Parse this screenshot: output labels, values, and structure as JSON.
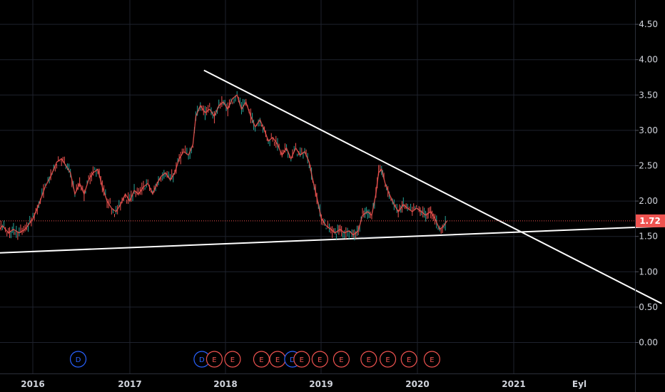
{
  "chart_data": {
    "type": "candlestick",
    "title": "",
    "xlabel": "",
    "ylabel": "",
    "x_ticks": [
      "2016",
      "2017",
      "2018",
      "2019",
      "2020",
      "2021",
      "Eyl"
    ],
    "y_ticks": [
      "0.00",
      "0.50",
      "1.00",
      "1.50",
      "2.00",
      "2.50",
      "3.00",
      "3.50",
      "4.00",
      "4.50"
    ],
    "ylim": [
      -0.45,
      4.85
    ],
    "xlim": [
      "2015-06",
      "2021-12"
    ],
    "grid": true,
    "last_price": "1.72",
    "last_price_value": 1.72,
    "colors": {
      "up": "#26a69a",
      "down": "#ef5350",
      "dividend": "#2962ff",
      "earnings": "#ef5350",
      "trendline": "#ffffff",
      "price_line": "#ef5350",
      "background": "#000000",
      "grid": "#1e222d"
    },
    "price_path": [
      {
        "x": "2015-06-01",
        "y": 1.35
      },
      {
        "x": "2015-06-20",
        "y": 1.45
      },
      {
        "x": "2015-07-10",
        "y": 1.55
      },
      {
        "x": "2015-07-25",
        "y": 1.85
      },
      {
        "x": "2015-08-15",
        "y": 1.7
      },
      {
        "x": "2015-09-05",
        "y": 1.55
      },
      {
        "x": "2015-09-25",
        "y": 1.65
      },
      {
        "x": "2015-10-15",
        "y": 1.55
      },
      {
        "x": "2015-11-01",
        "y": 1.6
      },
      {
        "x": "2015-11-20",
        "y": 1.55
      },
      {
        "x": "2015-12-10",
        "y": 1.6
      },
      {
        "x": "2016-01-05",
        "y": 1.75
      },
      {
        "x": "2016-01-25",
        "y": 1.95
      },
      {
        "x": "2016-02-15",
        "y": 2.2
      },
      {
        "x": "2016-03-05",
        "y": 2.35
      },
      {
        "x": "2016-03-25",
        "y": 2.55
      },
      {
        "x": "2016-04-10",
        "y": 2.6
      },
      {
        "x": "2016-04-25",
        "y": 2.5
      },
      {
        "x": "2016-05-10",
        "y": 2.4
      },
      {
        "x": "2016-05-25",
        "y": 2.1
      },
      {
        "x": "2016-06-10",
        "y": 2.25
      },
      {
        "x": "2016-06-25",
        "y": 2.1
      },
      {
        "x": "2016-07-10",
        "y": 2.3
      },
      {
        "x": "2016-07-25",
        "y": 2.4
      },
      {
        "x": "2016-08-10",
        "y": 2.45
      },
      {
        "x": "2016-08-25",
        "y": 2.2
      },
      {
        "x": "2016-09-10",
        "y": 2.0
      },
      {
        "x": "2016-09-25",
        "y": 1.9
      },
      {
        "x": "2016-10-10",
        "y": 1.85
      },
      {
        "x": "2016-10-25",
        "y": 1.95
      },
      {
        "x": "2016-11-10",
        "y": 2.1
      },
      {
        "x": "2016-11-25",
        "y": 2.0
      },
      {
        "x": "2016-12-10",
        "y": 2.15
      },
      {
        "x": "2016-12-25",
        "y": 2.1
      },
      {
        "x": "2017-01-10",
        "y": 2.2
      },
      {
        "x": "2017-01-25",
        "y": 2.25
      },
      {
        "x": "2017-02-10",
        "y": 2.1
      },
      {
        "x": "2017-02-25",
        "y": 2.25
      },
      {
        "x": "2017-03-10",
        "y": 2.35
      },
      {
        "x": "2017-03-25",
        "y": 2.4
      },
      {
        "x": "2017-04-10",
        "y": 2.3
      },
      {
        "x": "2017-04-25",
        "y": 2.4
      },
      {
        "x": "2017-05-10",
        "y": 2.6
      },
      {
        "x": "2017-05-25",
        "y": 2.7
      },
      {
        "x": "2017-06-10",
        "y": 2.65
      },
      {
        "x": "2017-06-25",
        "y": 2.8
      },
      {
        "x": "2017-07-05",
        "y": 3.2
      },
      {
        "x": "2017-07-20",
        "y": 3.35
      },
      {
        "x": "2017-08-05",
        "y": 3.25
      },
      {
        "x": "2017-08-20",
        "y": 3.3
      },
      {
        "x": "2017-09-05",
        "y": 3.2
      },
      {
        "x": "2017-09-20",
        "y": 3.35
      },
      {
        "x": "2017-10-05",
        "y": 3.4
      },
      {
        "x": "2017-10-20",
        "y": 3.3
      },
      {
        "x": "2017-11-05",
        "y": 3.45
      },
      {
        "x": "2017-11-20",
        "y": 3.5
      },
      {
        "x": "2017-12-05",
        "y": 3.3
      },
      {
        "x": "2017-12-20",
        "y": 3.4
      },
      {
        "x": "2018-01-05",
        "y": 3.2
      },
      {
        "x": "2018-01-20",
        "y": 3.05
      },
      {
        "x": "2018-02-05",
        "y": 3.15
      },
      {
        "x": "2018-02-20",
        "y": 3.0
      },
      {
        "x": "2018-03-05",
        "y": 2.85
      },
      {
        "x": "2018-03-20",
        "y": 2.9
      },
      {
        "x": "2018-04-05",
        "y": 2.8
      },
      {
        "x": "2018-04-20",
        "y": 2.65
      },
      {
        "x": "2018-05-05",
        "y": 2.75
      },
      {
        "x": "2018-05-20",
        "y": 2.6
      },
      {
        "x": "2018-06-05",
        "y": 2.75
      },
      {
        "x": "2018-06-20",
        "y": 2.65
      },
      {
        "x": "2018-07-05",
        "y": 2.7
      },
      {
        "x": "2018-07-20",
        "y": 2.55
      },
      {
        "x": "2018-08-01",
        "y": 2.3
      },
      {
        "x": "2018-08-15",
        "y": 2.05
      },
      {
        "x": "2018-08-30",
        "y": 1.75
      },
      {
        "x": "2018-09-15",
        "y": 1.65
      },
      {
        "x": "2018-10-01",
        "y": 1.6
      },
      {
        "x": "2018-10-15",
        "y": 1.55
      },
      {
        "x": "2018-11-01",
        "y": 1.6
      },
      {
        "x": "2018-11-15",
        "y": 1.55
      },
      {
        "x": "2018-12-01",
        "y": 1.58
      },
      {
        "x": "2018-12-15",
        "y": 1.52
      },
      {
        "x": "2019-01-01",
        "y": 1.58
      },
      {
        "x": "2019-01-15",
        "y": 1.8
      },
      {
        "x": "2019-02-01",
        "y": 1.85
      },
      {
        "x": "2019-02-15",
        "y": 1.8
      },
      {
        "x": "2019-03-01",
        "y": 2.1
      },
      {
        "x": "2019-03-10",
        "y": 2.4
      },
      {
        "x": "2019-03-20",
        "y": 2.45
      },
      {
        "x": "2019-04-01",
        "y": 2.25
      },
      {
        "x": "2019-04-15",
        "y": 2.1
      },
      {
        "x": "2019-05-01",
        "y": 1.95
      },
      {
        "x": "2019-05-15",
        "y": 1.85
      },
      {
        "x": "2019-06-01",
        "y": 1.95
      },
      {
        "x": "2019-06-15",
        "y": 1.9
      },
      {
        "x": "2019-07-01",
        "y": 1.85
      },
      {
        "x": "2019-07-15",
        "y": 1.9
      },
      {
        "x": "2019-08-01",
        "y": 1.85
      },
      {
        "x": "2019-08-15",
        "y": 1.8
      },
      {
        "x": "2019-09-01",
        "y": 1.85
      },
      {
        "x": "2019-09-15",
        "y": 1.75
      },
      {
        "x": "2019-10-01",
        "y": 1.6
      },
      {
        "x": "2019-10-15",
        "y": 1.65
      },
      {
        "x": "2019-10-25",
        "y": 1.72
      }
    ],
    "trendlines": [
      {
        "name": "resistance",
        "from": {
          "x": "2017-08-01",
          "y": 3.85
        },
        "to": {
          "x": "2021-10-15",
          "y": 0.55
        }
      },
      {
        "name": "support",
        "from": {
          "x": "2015-06-01",
          "y": 1.25
        },
        "to": {
          "x": "2021-11-25",
          "y": 1.65
        }
      }
    ],
    "events": [
      {
        "type": "D",
        "label": "D",
        "x": "2016-06-05"
      },
      {
        "type": "D",
        "label": "D",
        "x": "2017-07-25"
      },
      {
        "type": "E",
        "label": "E",
        "x": "2017-09-05"
      },
      {
        "type": "E",
        "label": "E",
        "x": "2017-11-05"
      },
      {
        "type": "E",
        "label": "E",
        "x": "2018-02-10"
      },
      {
        "type": "E",
        "label": "E",
        "x": "2018-04-05"
      },
      {
        "type": "D",
        "label": "D",
        "x": "2018-05-25"
      },
      {
        "type": "E",
        "label": "E",
        "x": "2018-06-25"
      },
      {
        "type": "E",
        "label": "E",
        "x": "2018-08-25"
      },
      {
        "type": "E",
        "label": "E",
        "x": "2018-11-05"
      },
      {
        "type": "E",
        "label": "E",
        "x": "2019-02-05"
      },
      {
        "type": "E",
        "label": "E",
        "x": "2019-04-10"
      },
      {
        "type": "E",
        "label": "E",
        "x": "2019-06-20"
      },
      {
        "type": "E",
        "label": "E",
        "x": "2019-09-05"
      }
    ]
  }
}
